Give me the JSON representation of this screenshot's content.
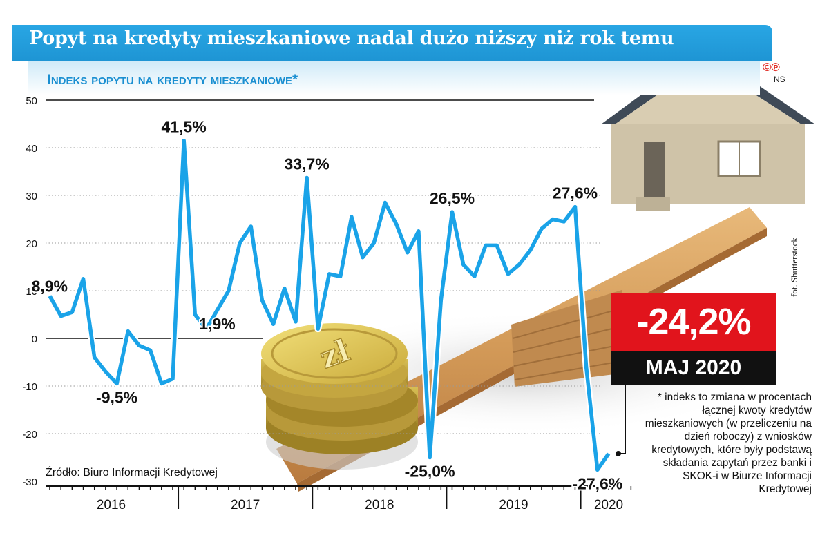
{
  "header": {
    "title": "Popyt na kredyty mieszkaniowe nadal dużo niższy niż rok temu",
    "subtitle": "Indeks popytu na kredyty mieszkaniowe*"
  },
  "branding": {
    "logo_text": "©℗",
    "logo_sub": "NS",
    "photo_credit": "fot. Shutterstock"
  },
  "highlight": {
    "value": "-24,2%",
    "date": "MAJ 2020",
    "accent_color": "#e1141c"
  },
  "footnote": "* indeks to zmiana w procentach łącznej kwoty kredytów mieszkaniowych (w przeliczeniu na dzień roboczy) z wniosków kredytowych, które były podstawą składania zapytań przez banki i SKOK-i w Biurze Informacji Kredytowej",
  "source": "Źródło: Biuro Informacji Kredytowej",
  "chart_data": {
    "type": "line",
    "line_color": "#1aa3e8",
    "ylim": [
      -30,
      50
    ],
    "yticks": [
      -30,
      -20,
      -10,
      0,
      10,
      20,
      30,
      40,
      50
    ],
    "grid": "dotted horizontal",
    "years": [
      "2016",
      "2017",
      "2018",
      "2019",
      "2020"
    ],
    "year_month_start": [
      1,
      13,
      25,
      37,
      49
    ],
    "x_month_range": [
      1,
      53
    ],
    "series": [
      {
        "values": [
          8.9,
          4.7,
          5.5,
          12.5,
          -4.0,
          -7.0,
          -9.5,
          1.5,
          -1.5,
          -2.5,
          -9.5,
          -8.5,
          41.5,
          5.0,
          1.9,
          6.0,
          10.0,
          20.0,
          23.5,
          8.0,
          3.0,
          10.5,
          3.5,
          33.7,
          2.0,
          13.5,
          13.0,
          25.5,
          17.0,
          20.0,
          28.5,
          24.0,
          18.0,
          22.5,
          -25.0,
          8.0,
          26.5,
          15.5,
          13.0,
          19.5,
          19.5,
          13.5,
          15.5,
          18.5,
          23.0,
          25.0,
          24.5,
          27.6,
          -6.0,
          -27.6,
          -24.2
        ]
      }
    ],
    "annotations": [
      {
        "month": 1,
        "label": "8,9%"
      },
      {
        "month": 7,
        "label": "-9,5%"
      },
      {
        "month": 13,
        "label": "41,5%"
      },
      {
        "month": 15,
        "label": "1,9%"
      },
      {
        "month": 24,
        "label": "33,7%"
      },
      {
        "month": 35,
        "label": "-25,0%"
      },
      {
        "month": 37,
        "label": "26,5%"
      },
      {
        "month": 48,
        "label": "27,6%"
      },
      {
        "month": 50,
        "label": "-27,6%"
      }
    ]
  }
}
